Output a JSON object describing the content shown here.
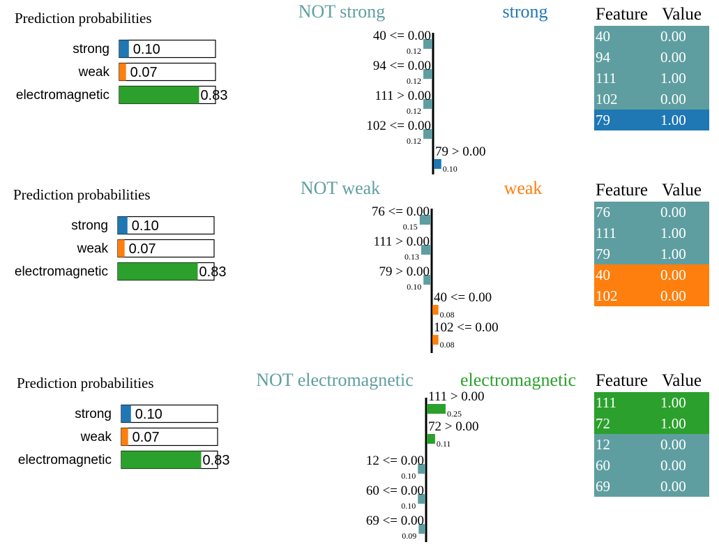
{
  "colors": {
    "strong": "#1f77b4",
    "weak": "#ff7f0e",
    "electromagnetic": "#2ca02c",
    "not": "#5f9ea0",
    "bar_green": "#2ca02c"
  },
  "chart_data": [
    {
      "type": "bar",
      "prob_title": "Prediction probabilities",
      "probabilities": [
        {
          "label": "strong",
          "value": 0.1,
          "text": "0.10",
          "color": "#1f77b4"
        },
        {
          "label": "weak",
          "value": 0.07,
          "text": "0.07",
          "color": "#ff7f0e"
        },
        {
          "label": "electromagnetic",
          "value": 0.83,
          "text": "0.83",
          "color": "#2ca02c"
        }
      ],
      "not_label": "NOT strong",
      "class_label": "strong",
      "class_color": "#1f77b4",
      "contributions": [
        {
          "label": "40 <= 0.00",
          "value": -0.12,
          "text": "0.12"
        },
        {
          "label": "94 <= 0.00",
          "value": -0.12,
          "text": "0.12"
        },
        {
          "label": "111 > 0.00",
          "value": -0.12,
          "text": "0.12"
        },
        {
          "label": "102 <= 0.00",
          "value": -0.12,
          "text": "0.12"
        },
        {
          "label": "79 > 0.00",
          "value": 0.1,
          "text": "0.10"
        }
      ],
      "table_headers": [
        "Feature",
        "Value"
      ],
      "table": [
        {
          "feature": "40",
          "value": "0.00",
          "pos": false
        },
        {
          "feature": "94",
          "value": "0.00",
          "pos": false
        },
        {
          "feature": "111",
          "value": "1.00",
          "pos": false
        },
        {
          "feature": "102",
          "value": "0.00",
          "pos": false
        },
        {
          "feature": "79",
          "value": "1.00",
          "pos": true
        }
      ]
    },
    {
      "type": "bar",
      "prob_title": "Prediction probabilities",
      "probabilities": [
        {
          "label": "strong",
          "value": 0.1,
          "text": "0.10",
          "color": "#1f77b4"
        },
        {
          "label": "weak",
          "value": 0.07,
          "text": "0.07",
          "color": "#ff7f0e"
        },
        {
          "label": "electromagnetic",
          "value": 0.83,
          "text": "0.83",
          "color": "#2ca02c"
        }
      ],
      "not_label": "NOT weak",
      "class_label": "weak",
      "class_color": "#ff7f0e",
      "contributions": [
        {
          "label": "76 <= 0.00",
          "value": -0.15,
          "text": "0.15"
        },
        {
          "label": "111 > 0.00",
          "value": -0.13,
          "text": "0.13"
        },
        {
          "label": "79 > 0.00",
          "value": -0.1,
          "text": "0.10"
        },
        {
          "label": "40 <= 0.00",
          "value": 0.08,
          "text": "0.08"
        },
        {
          "label": "102 <= 0.00",
          "value": 0.08,
          "text": "0.08"
        }
      ],
      "table_headers": [
        "Feature",
        "Value"
      ],
      "table": [
        {
          "feature": "76",
          "value": "0.00",
          "pos": false
        },
        {
          "feature": "111",
          "value": "1.00",
          "pos": false
        },
        {
          "feature": "79",
          "value": "1.00",
          "pos": false
        },
        {
          "feature": "40",
          "value": "0.00",
          "pos": true
        },
        {
          "feature": "102",
          "value": "0.00",
          "pos": true
        }
      ]
    },
    {
      "type": "bar",
      "prob_title": "Prediction probabilities",
      "probabilities": [
        {
          "label": "strong",
          "value": 0.1,
          "text": "0.10",
          "color": "#1f77b4"
        },
        {
          "label": "weak",
          "value": 0.07,
          "text": "0.07",
          "color": "#ff7f0e"
        },
        {
          "label": "electromagnetic",
          "value": 0.83,
          "text": "0.83",
          "color": "#2ca02c"
        }
      ],
      "not_label": "NOT electromagnetic",
      "class_label": "electromagnetic",
      "class_color": "#2ca02c",
      "contributions": [
        {
          "label": "111 > 0.00",
          "value": 0.25,
          "text": "0.25"
        },
        {
          "label": "72 > 0.00",
          "value": 0.11,
          "text": "0.11"
        },
        {
          "label": "12 <= 0.00",
          "value": -0.1,
          "text": "0.10"
        },
        {
          "label": "60 <= 0.00",
          "value": -0.1,
          "text": "0.10"
        },
        {
          "label": "69 <= 0.00",
          "value": -0.09,
          "text": "0.09"
        }
      ],
      "table_headers": [
        "Feature",
        "Value"
      ],
      "table": [
        {
          "feature": "111",
          "value": "1.00",
          "pos": true
        },
        {
          "feature": "72",
          "value": "1.00",
          "pos": true
        },
        {
          "feature": "12",
          "value": "0.00",
          "pos": false
        },
        {
          "feature": "60",
          "value": "0.00",
          "pos": false
        },
        {
          "feature": "69",
          "value": "0.00",
          "pos": false
        }
      ]
    }
  ]
}
